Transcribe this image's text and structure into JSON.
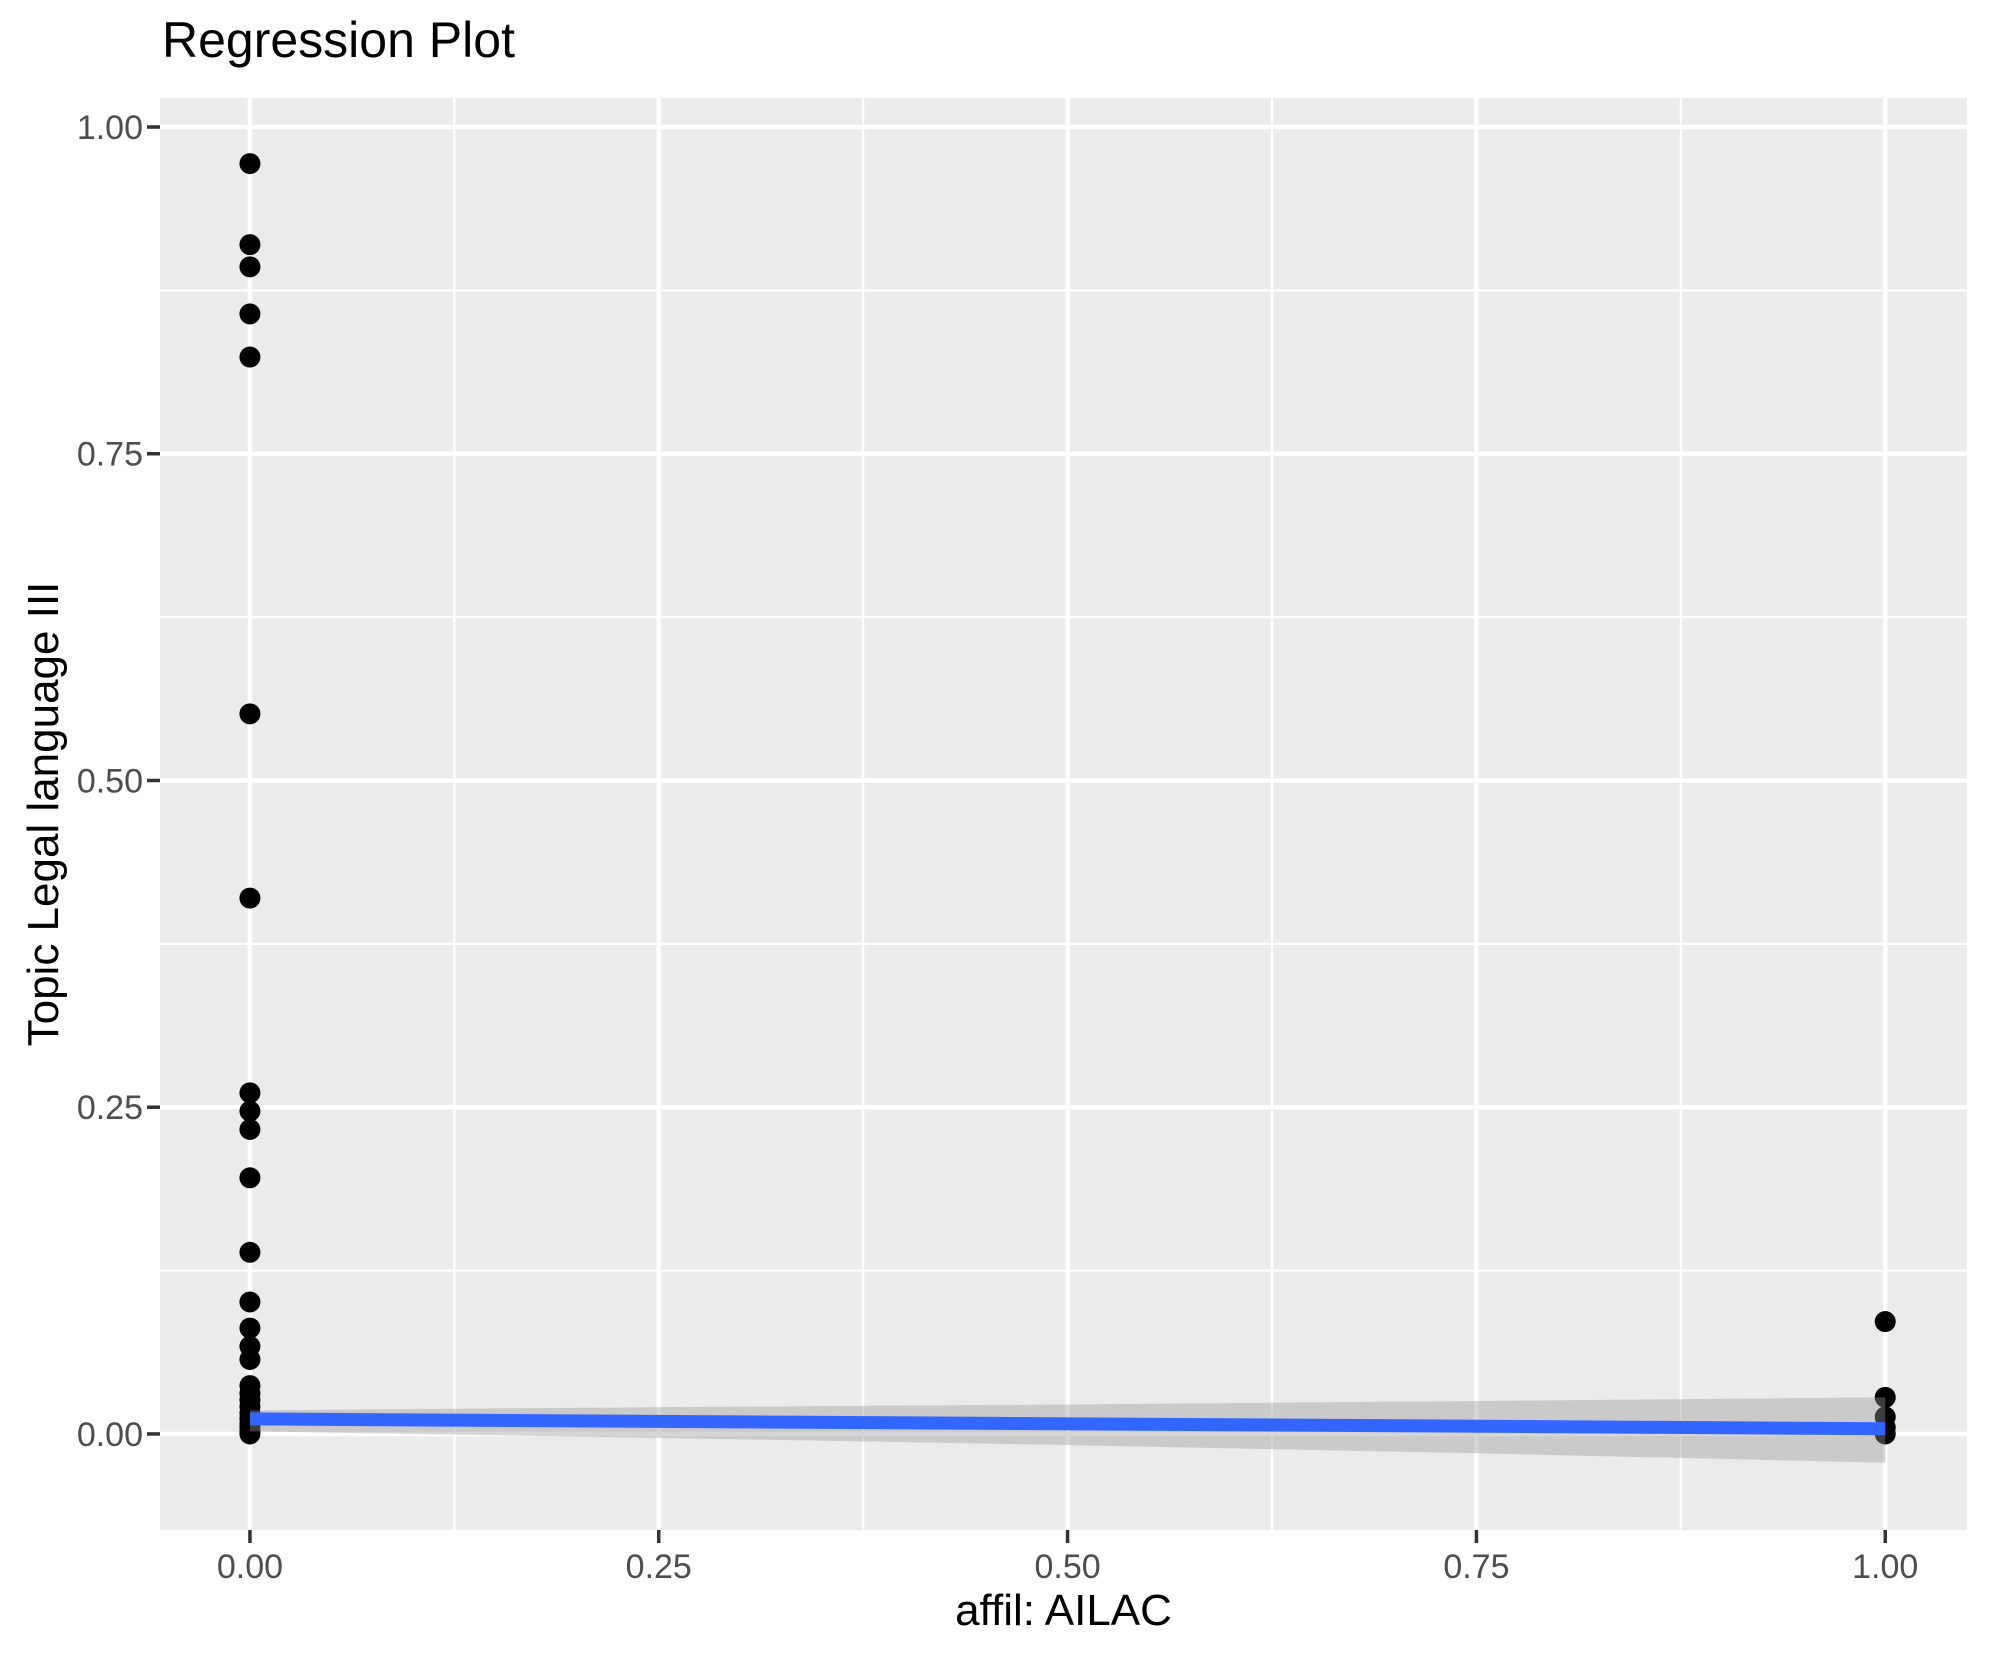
{
  "title": "Regression Plot",
  "x_axis": {
    "title": "affil: AILAC"
  },
  "y_axis": {
    "title": "Topic Legal language III"
  },
  "chart_data": {
    "type": "scatter",
    "title": "Regression Plot",
    "xlabel": "affil: AILAC",
    "ylabel": "Topic Legal language III",
    "xlim": [
      -0.055,
      1.05
    ],
    "ylim": [
      -0.0735,
      1.0222
    ],
    "grid": "major-and-minor",
    "legend_position": "none",
    "x_ticks": [
      {
        "value": 0.0,
        "label": "0.00"
      },
      {
        "value": 0.25,
        "label": "0.25"
      },
      {
        "value": 0.5,
        "label": "0.50"
      },
      {
        "value": 0.75,
        "label": "0.75"
      },
      {
        "value": 1.0,
        "label": "1.00"
      }
    ],
    "y_ticks": [
      {
        "value": 0.0,
        "label": "0.00"
      },
      {
        "value": 0.25,
        "label": "0.25"
      },
      {
        "value": 0.5,
        "label": "0.50"
      },
      {
        "value": 0.75,
        "label": "0.75"
      },
      {
        "value": 1.0,
        "label": "1.00"
      }
    ],
    "x_minor_ticks": [
      0.125,
      0.375,
      0.625,
      0.875
    ],
    "y_minor_ticks": [
      0.125,
      0.375,
      0.625,
      0.875
    ],
    "series": [
      {
        "name": "observations",
        "marker": "filled-circle",
        "color": "#000000",
        "points": [
          [
            0,
            0.972
          ],
          [
            0,
            0.91
          ],
          [
            0,
            0.893
          ],
          [
            0,
            0.857
          ],
          [
            0,
            0.824
          ],
          [
            0,
            0.551
          ],
          [
            0,
            0.41
          ],
          [
            0,
            0.261
          ],
          [
            0,
            0.247
          ],
          [
            0,
            0.233
          ],
          [
            0,
            0.196
          ],
          [
            0,
            0.139
          ],
          [
            0,
            0.101
          ],
          [
            0,
            0.081
          ],
          [
            0,
            0.067
          ],
          [
            0,
            0.057
          ],
          [
            0,
            0.037
          ],
          [
            0,
            0.031
          ],
          [
            0,
            0.026
          ],
          [
            0,
            0.021
          ],
          [
            0,
            0.016
          ],
          [
            0,
            0.012
          ],
          [
            0,
            0.008
          ],
          [
            0,
            0.005
          ],
          [
            0,
            0.002
          ],
          [
            0,
            0.0
          ],
          [
            1,
            0.086
          ],
          [
            1,
            0.028
          ],
          [
            1,
            0.013
          ],
          [
            1,
            0.005
          ],
          [
            1,
            0.0
          ]
        ]
      }
    ],
    "regression_line": {
      "name": "linear-fit",
      "color": "#3366FF",
      "x": [
        0,
        1
      ],
      "y": [
        0.0115,
        0.004
      ]
    },
    "confidence_band": {
      "name": "95%-confidence-band",
      "fill": "rgba(153,153,153,0.4)",
      "x": [
        0.0,
        0.25,
        0.5,
        0.75,
        1.0
      ],
      "upper": [
        0.018,
        0.0205,
        0.0225,
        0.0252,
        0.028
      ],
      "lower": [
        0.002,
        -0.003,
        -0.0085,
        -0.0148,
        -0.022
      ]
    },
    "style": {
      "panel_fill": "#EBEBEB",
      "grid_color": "#FFFFFF",
      "tick_mark_color": "#333333",
      "tick_label_color": "#4D4D4D",
      "title_color": "#000000",
      "point_color": "#000000"
    }
  }
}
